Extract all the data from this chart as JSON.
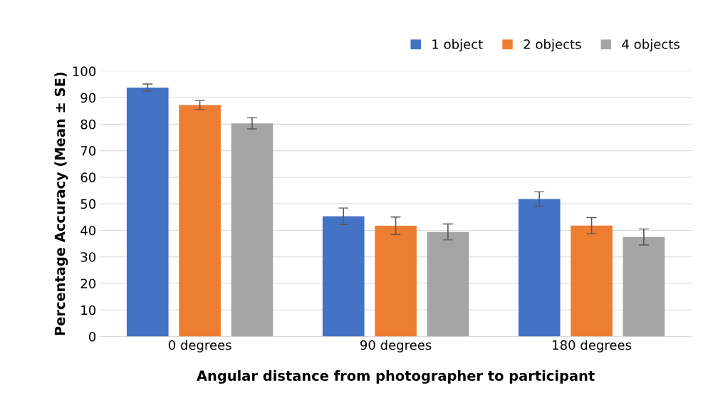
{
  "chart_data": {
    "type": "bar",
    "xlabel": "Angular distance from photographer to participant",
    "ylabel": "Percentage Accuracy (Mean ± SE)",
    "categories": [
      "0 degrees",
      "90 degrees",
      "180 degrees"
    ],
    "series": [
      {
        "name": "1 object",
        "color": "#4472c4",
        "values": [
          93.8,
          45.3,
          51.8
        ],
        "errors": [
          1.3,
          3.1,
          2.7
        ]
      },
      {
        "name": "2 objects",
        "color": "#ed7d31",
        "values": [
          87.2,
          41.7,
          41.8
        ],
        "errors": [
          1.7,
          3.3,
          3.0
        ]
      },
      {
        "name": "4 objects",
        "color": "#a5a5a5",
        "values": [
          80.3,
          39.4,
          37.5
        ],
        "errors": [
          2.1,
          3.0,
          3.0
        ]
      }
    ],
    "ylim": [
      0,
      100
    ],
    "yticks": [
      0,
      10,
      20,
      30,
      40,
      50,
      60,
      70,
      80,
      90,
      100
    ],
    "grid": "y",
    "legend": "top right"
  }
}
